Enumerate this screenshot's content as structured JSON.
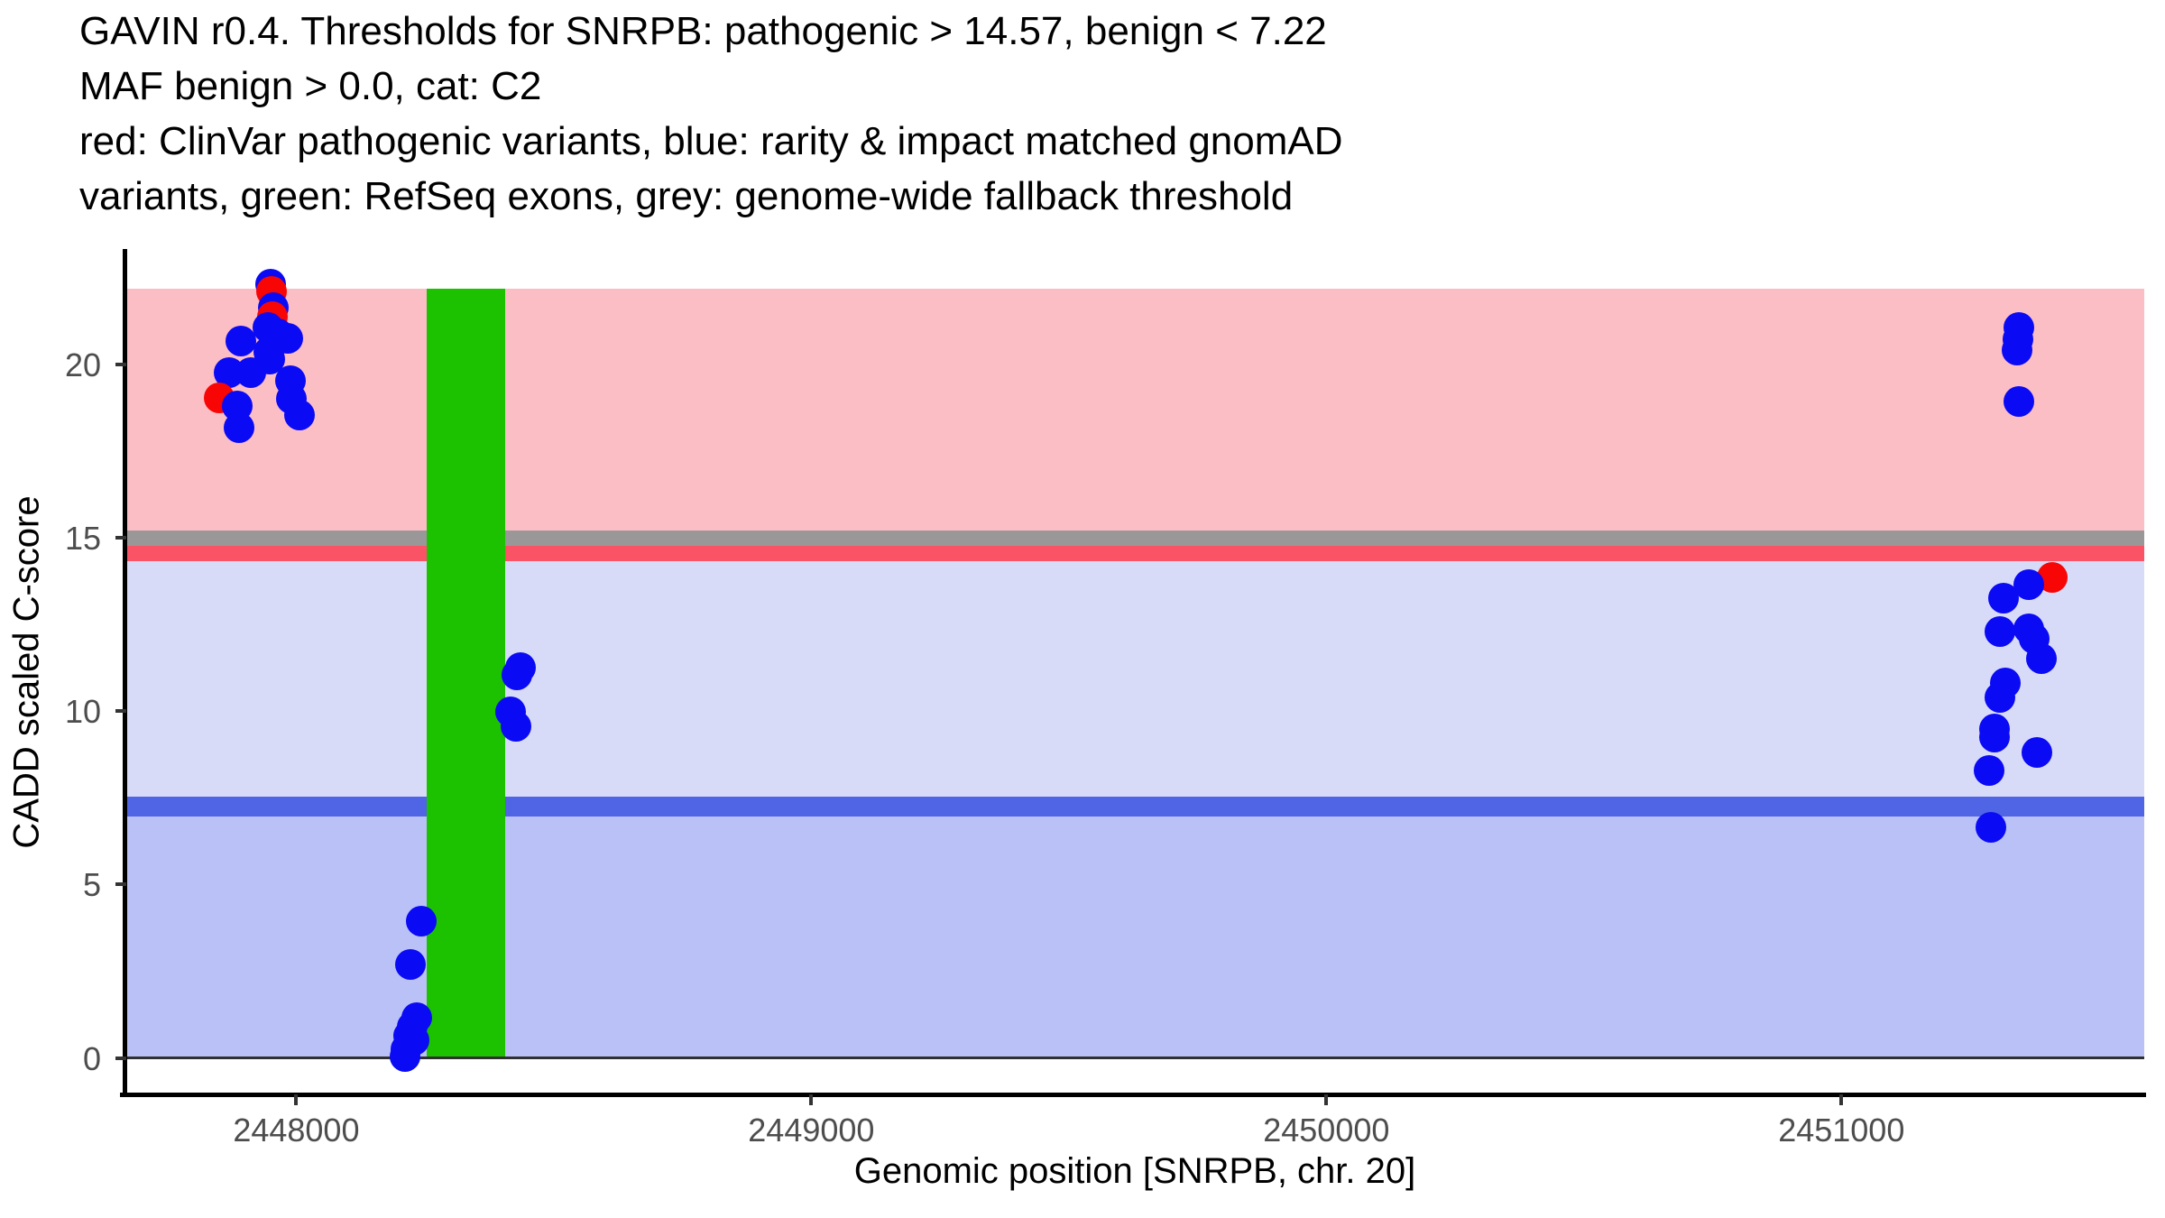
{
  "chart_data": {
    "type": "scatter",
    "title_lines": [
      "GAVIN r0.4. Thresholds for SNRPB: pathogenic > 14.57, benign < 7.22",
      "MAF benign > 0.0, cat: C2",
      "red: ClinVar pathogenic variants, blue: rarity & impact matched gnomAD",
      "variants, green: RefSeq exons, grey: genome-wide fallback threshold"
    ],
    "xlabel": "Genomic position [SNRPB, chr. 20]",
    "ylabel": "CADD scaled C-score",
    "x_domain": [
      2447670,
      2451588
    ],
    "y_domain": [
      -1.05,
      23.27
    ],
    "x_ticks": [
      {
        "v": 2448000,
        "label": "2448000"
      },
      {
        "v": 2449000,
        "label": "2449000"
      },
      {
        "v": 2450000,
        "label": "2450000"
      },
      {
        "v": 2451000,
        "label": "2451000"
      }
    ],
    "y_ticks": [
      {
        "v": 0,
        "label": "0"
      },
      {
        "v": 5,
        "label": "5"
      },
      {
        "v": 10,
        "label": "10"
      },
      {
        "v": 15,
        "label": "15"
      },
      {
        "v": 20,
        "label": "20"
      }
    ],
    "thresholds": {
      "pathogenic": 14.57,
      "benign": 7.22,
      "maf_benign": 0.0,
      "category": "C2",
      "genome_wide_fallback": 15
    },
    "bands": [
      {
        "name": "pathogenic-region",
        "from": 15.2,
        "to": 22.18,
        "color": "#FBBEC5"
      },
      {
        "name": "fallback-threshold-band",
        "from": 14.77,
        "to": 15.2,
        "color": "#9A9799"
      },
      {
        "name": "pathogenic-threshold-line",
        "from": 14.33,
        "to": 14.77,
        "color": "#FA5365"
      },
      {
        "name": "intermediate-region",
        "from": 7.53,
        "to": 14.33,
        "color": "#D7DBF8"
      },
      {
        "name": "benign-threshold-line",
        "from": 6.96,
        "to": 7.53,
        "color": "#5064E6"
      },
      {
        "name": "benign-region",
        "from": 0,
        "to": 6.96,
        "color": "#BAC1F6"
      }
    ],
    "exons": [
      {
        "name": "refseq-exon",
        "x_from": 2448253,
        "x_to": 2448405,
        "y_from": 0,
        "y_to": 22.18,
        "color": "#1CC200"
      }
    ],
    "zero_line": {
      "v": 0,
      "color": "#303030"
    },
    "point_diameter": 34,
    "series": [
      {
        "name": "ClinVar pathogenic variants",
        "color": "#F80505",
        "points": [
          [
            2447952,
            22.11
          ],
          [
            2447953,
            21.38
          ],
          [
            2447850,
            19.03
          ],
          [
            2451409,
            13.86
          ]
        ]
      },
      {
        "name": "rarity & impact matched gnomAD variants",
        "color": "#0A0AF5",
        "points": [
          [
            2447950,
            22.31
          ],
          [
            2447956,
            21.62
          ],
          [
            2447945,
            21.05
          ],
          [
            2447965,
            20.88
          ],
          [
            2447983,
            20.75
          ],
          [
            2447892,
            20.66
          ],
          [
            2447947,
            20.36
          ],
          [
            2447949,
            20.14
          ],
          [
            2447911,
            19.77
          ],
          [
            2447869,
            19.75
          ],
          [
            2447989,
            19.53
          ],
          [
            2447991,
            19.0
          ],
          [
            2447885,
            18.8
          ],
          [
            2448006,
            18.54
          ],
          [
            2447889,
            18.17
          ],
          [
            2448435,
            11.26
          ],
          [
            2448429,
            11.05
          ],
          [
            2448416,
            9.97
          ],
          [
            2448427,
            9.56
          ],
          [
            2448242,
            3.95
          ],
          [
            2448221,
            2.69
          ],
          [
            2448234,
            1.17
          ],
          [
            2448226,
            0.89
          ],
          [
            2448219,
            0.63
          ],
          [
            2448229,
            0.5
          ],
          [
            2448213,
            0.24
          ],
          [
            2448212,
            0.03
          ],
          [
            2451344,
            21.07
          ],
          [
            2451342,
            20.71
          ],
          [
            2451341,
            20.4
          ],
          [
            2451344,
            18.93
          ],
          [
            2451364,
            13.64
          ],
          [
            2451315,
            13.25
          ],
          [
            2451363,
            12.38
          ],
          [
            2451307,
            12.3
          ],
          [
            2451374,
            12.08
          ],
          [
            2451389,
            11.52
          ],
          [
            2451318,
            10.82
          ],
          [
            2451307,
            10.39
          ],
          [
            2451298,
            9.48
          ],
          [
            2451298,
            9.26
          ],
          [
            2451380,
            8.81
          ],
          [
            2451286,
            8.28
          ],
          [
            2451291,
            6.66
          ]
        ]
      }
    ]
  }
}
